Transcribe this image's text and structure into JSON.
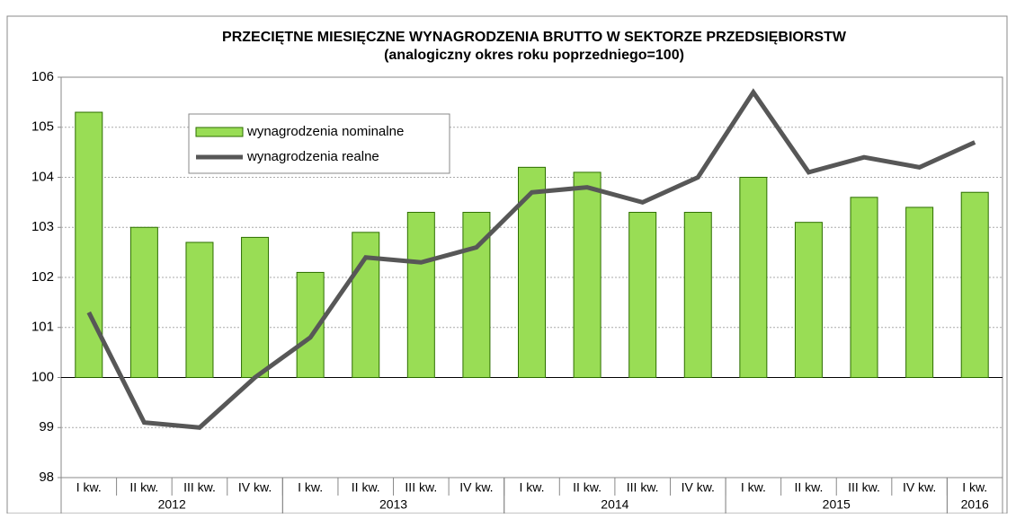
{
  "chart_data": {
    "type": "bar-line",
    "title": "PRZECIĘTNE MIESIĘCZNE WYNAGRODZENIA BRUTTO W SEKTORZE PRZEDSIĘBIORSTW",
    "subtitle": "(analogiczny okres  roku poprzedniego=100)",
    "categories": [
      "I kw.",
      "II kw.",
      "III kw.",
      "IV kw.",
      "I kw.",
      "II kw.",
      "III kw.",
      "IV kw.",
      "I kw.",
      "II kw.",
      "III kw.",
      "IV kw.",
      "I kw.",
      "II kw.",
      "III kw.",
      "IV kw.",
      "I kw."
    ],
    "groups": [
      {
        "label": "2012",
        "count": 4
      },
      {
        "label": "2013",
        "count": 4
      },
      {
        "label": "2014",
        "count": 4
      },
      {
        "label": "2015",
        "count": 4
      },
      {
        "label": "2016",
        "count": 1
      }
    ],
    "series": [
      {
        "name": "wynagrodzenia nominalne",
        "type": "bar",
        "color": "#99dd55",
        "values": [
          105.3,
          103.0,
          102.7,
          102.8,
          102.1,
          102.9,
          103.3,
          103.3,
          104.2,
          104.1,
          103.3,
          103.3,
          104.0,
          103.1,
          103.6,
          103.4,
          103.7
        ]
      },
      {
        "name": "wynagrodzenia realne",
        "type": "line",
        "color": "#575757",
        "values": [
          101.3,
          99.1,
          99.0,
          100.0,
          100.8,
          102.4,
          102.3,
          102.6,
          103.7,
          103.8,
          103.5,
          104.0,
          105.7,
          104.1,
          104.4,
          104.2,
          104.7
        ]
      }
    ],
    "baseline": 100,
    "ylim": [
      98,
      106
    ],
    "yticks": [
      98,
      99,
      100,
      101,
      102,
      103,
      104,
      105,
      106
    ],
    "grid": true,
    "legend": "top-left"
  }
}
